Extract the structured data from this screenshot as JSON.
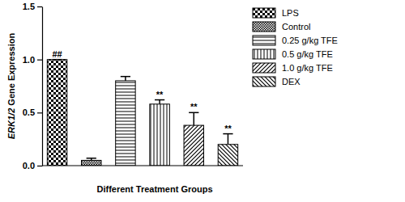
{
  "chart_data": {
    "type": "bar",
    "x_label": "Different Treatment Groups",
    "y_label": "ERK1/2 Gene Expression",
    "categories": [
      "LPS",
      "Control",
      "0.25 g/kg TFE",
      "0.5 g/kg TFE",
      "1.0 g/kg TFE",
      "DEX"
    ],
    "values": [
      1.0,
      0.05,
      0.8,
      0.58,
      0.38,
      0.2
    ],
    "errors": [
      0,
      0.02,
      0.04,
      0.04,
      0.12,
      0.1
    ],
    "annotations": [
      {
        "text": "##",
        "index": 0
      },
      {
        "text": "**",
        "index": 3
      },
      {
        "text": "**",
        "index": 4
      },
      {
        "text": "**",
        "index": 5
      }
    ],
    "color": "#000000",
    "ylim": [
      0,
      1.5
    ],
    "yticks": [
      {
        "value": 0,
        "label": "0.0"
      },
      0.5,
      {
        "value": 1,
        "label": "1.0"
      },
      1.5
    ],
    "legend": "right",
    "tick_labels": "y",
    "grid": false
  }
}
